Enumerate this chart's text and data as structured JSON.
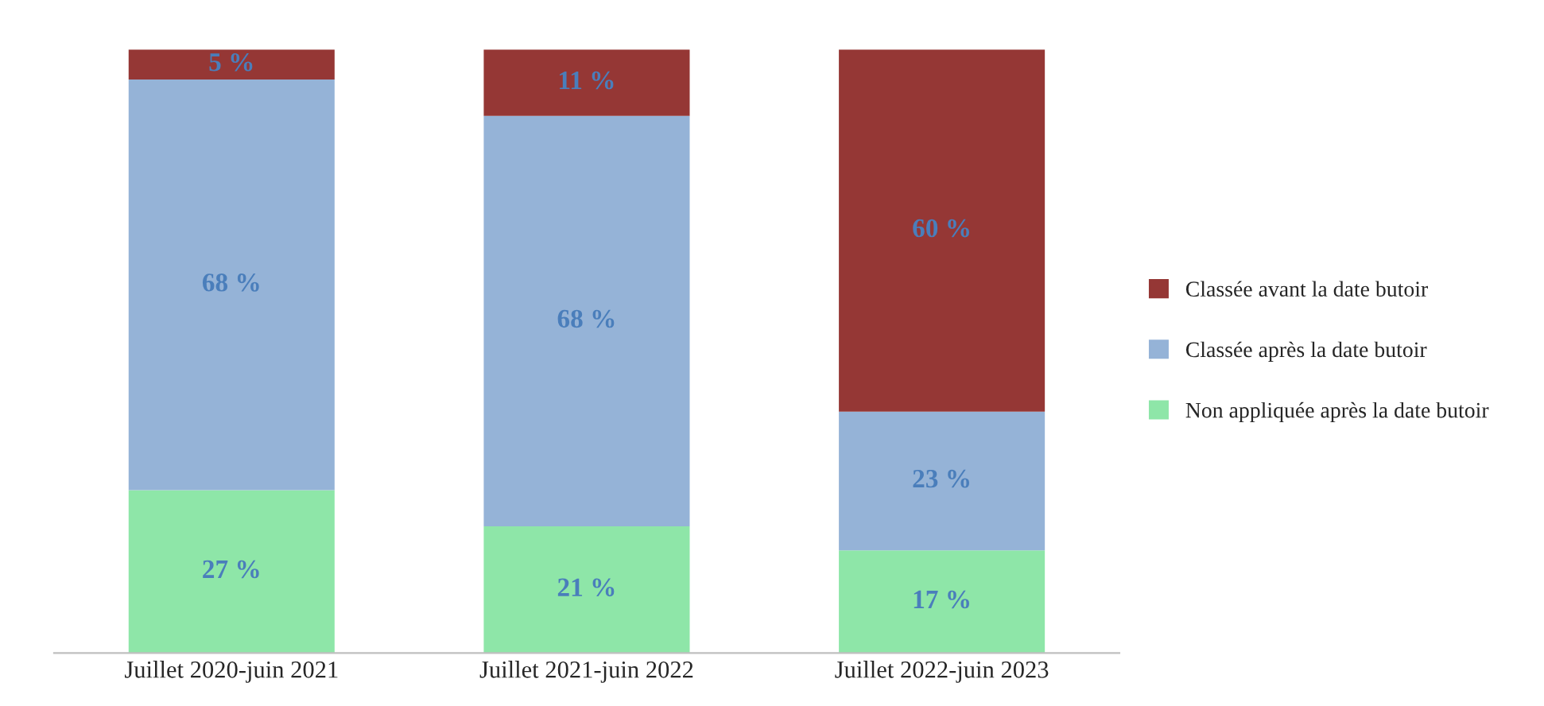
{
  "chart_data": {
    "type": "bar",
    "stacked": true,
    "categories": [
      "Juillet 2020-juin 2021",
      "Juillet 2021-juin 2022",
      "Juillet 2022-juin 2023"
    ],
    "series": [
      {
        "name": "Non appliquée après la date butoir",
        "color": "#8ee6a8",
        "values": [
          27,
          21,
          17
        ],
        "value_labels": [
          "27 %",
          "21 %",
          "17 %"
        ]
      },
      {
        "name": "Classée après la date butoir",
        "color": "#95b3d7",
        "values": [
          68,
          68,
          23
        ],
        "value_labels": [
          "68 %",
          "68 %",
          "23 %"
        ]
      },
      {
        "name": "Classée avant la date butoir",
        "color": "#953735",
        "values": [
          5,
          11,
          60
        ],
        "value_labels": [
          "5 %",
          "11 %",
          "60 %"
        ]
      }
    ],
    "ylim": [
      0,
      100
    ],
    "tick_labels": "x",
    "legend": "right",
    "grid": false
  }
}
